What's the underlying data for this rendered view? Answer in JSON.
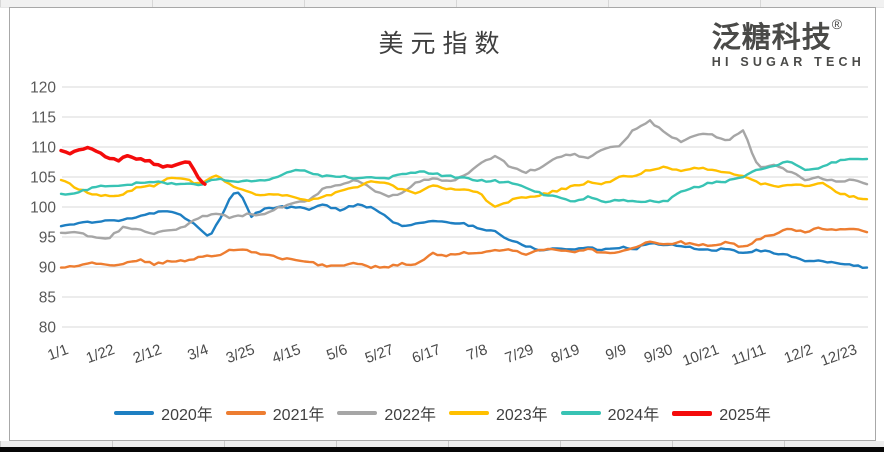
{
  "header": {
    "title": "美元指数"
  },
  "logo": {
    "name": "泛糖科技",
    "registered": "®",
    "subtitle": "HI SUGAR TECH"
  },
  "colors": {
    "grid": "#d9d9d9",
    "axis_text": "#595959",
    "xlabel_text": "#4a4a4a",
    "title_text": "#3f3f3f"
  },
  "chart_data": {
    "type": "line",
    "title": "美元指数",
    "xlabel": "",
    "ylabel": "",
    "ylim": [
      80,
      120
    ],
    "yticks": [
      120,
      115,
      110,
      105,
      100,
      95,
      90,
      85,
      80
    ],
    "x_domain_days": [
      1,
      365
    ],
    "x_tick_days": [
      1,
      22,
      43,
      64,
      85,
      106,
      127,
      148,
      169,
      190,
      211,
      232,
      253,
      274,
      295,
      316,
      337,
      357
    ],
    "x_tick_labels": [
      "1/1",
      "1/22",
      "2/12",
      "3/4",
      "3/25",
      "4/15",
      "5/6",
      "5/27",
      "6/17",
      "7/8",
      "7/29",
      "8/19",
      "9/9",
      "9/30",
      "10/21",
      "11/11",
      "12/2",
      "12/23"
    ],
    "grid": "horizontal",
    "legend_position": "bottom",
    "series": [
      {
        "name": "2020年",
        "color": "#1e7fc2",
        "width": 2.4,
        "points": [
          [
            1,
            96.8
          ],
          [
            8,
            97.3
          ],
          [
            15,
            97.4
          ],
          [
            22,
            97.8
          ],
          [
            29,
            97.9
          ],
          [
            36,
            98.3
          ],
          [
            43,
            99.0
          ],
          [
            50,
            99.5
          ],
          [
            57,
            98.2
          ],
          [
            61,
            97.4
          ],
          [
            64,
            96.4
          ],
          [
            68,
            95.0
          ],
          [
            75,
            99.6
          ],
          [
            78,
            102.0
          ],
          [
            80,
            102.8
          ],
          [
            83,
            101.6
          ],
          [
            87,
            98.4
          ],
          [
            92,
            99.6
          ],
          [
            99,
            100.0
          ],
          [
            106,
            99.9
          ],
          [
            113,
            99.7
          ],
          [
            120,
            100.3
          ],
          [
            127,
            99.5
          ],
          [
            134,
            100.4
          ],
          [
            141,
            99.9
          ],
          [
            148,
            98.3
          ],
          [
            155,
            96.7
          ],
          [
            162,
            97.3
          ],
          [
            169,
            97.6
          ],
          [
            176,
            97.4
          ],
          [
            183,
            97.2
          ],
          [
            190,
            96.5
          ],
          [
            197,
            95.9
          ],
          [
            204,
            94.4
          ],
          [
            211,
            93.5
          ],
          [
            218,
            92.8
          ],
          [
            225,
            93.1
          ],
          [
            232,
            92.9
          ],
          [
            239,
            93.3
          ],
          [
            246,
            92.8
          ],
          [
            253,
            93.3
          ],
          [
            260,
            93.0
          ],
          [
            267,
            94.0
          ],
          [
            274,
            93.7
          ],
          [
            281,
            93.6
          ],
          [
            288,
            93.0
          ],
          [
            295,
            92.8
          ],
          [
            302,
            93.1
          ],
          [
            309,
            92.2
          ],
          [
            316,
            92.8
          ],
          [
            323,
            92.3
          ],
          [
            330,
            91.9
          ],
          [
            337,
            90.8
          ],
          [
            344,
            91.0
          ],
          [
            351,
            90.7
          ],
          [
            358,
            90.3
          ],
          [
            365,
            89.9
          ]
        ]
      },
      {
        "name": "2021年",
        "color": "#ed7d31",
        "width": 2.4,
        "points": [
          [
            1,
            89.9
          ],
          [
            8,
            90.1
          ],
          [
            15,
            90.8
          ],
          [
            22,
            90.2
          ],
          [
            29,
            90.6
          ],
          [
            36,
            91.2
          ],
          [
            43,
            90.5
          ],
          [
            50,
            90.9
          ],
          [
            57,
            91.0
          ],
          [
            64,
            91.6
          ],
          [
            71,
            91.9
          ],
          [
            78,
            92.9
          ],
          [
            85,
            92.8
          ],
          [
            92,
            92.1
          ],
          [
            99,
            91.6
          ],
          [
            106,
            91.1
          ],
          [
            113,
            90.8
          ],
          [
            120,
            90.2
          ],
          [
            127,
            90.2
          ],
          [
            134,
            90.8
          ],
          [
            141,
            90.0
          ],
          [
            148,
            90.0
          ],
          [
            155,
            90.5
          ],
          [
            162,
            90.5
          ],
          [
            169,
            92.2
          ],
          [
            176,
            91.9
          ],
          [
            183,
            92.4
          ],
          [
            190,
            92.2
          ],
          [
            197,
            92.7
          ],
          [
            204,
            92.9
          ],
          [
            211,
            92.2
          ],
          [
            218,
            93.0
          ],
          [
            225,
            92.8
          ],
          [
            232,
            92.5
          ],
          [
            239,
            93.0
          ],
          [
            246,
            92.3
          ],
          [
            253,
            92.6
          ],
          [
            260,
            93.2
          ],
          [
            267,
            94.3
          ],
          [
            274,
            93.8
          ],
          [
            281,
            94.1
          ],
          [
            288,
            93.7
          ],
          [
            295,
            93.6
          ],
          [
            302,
            94.1
          ],
          [
            309,
            93.3
          ],
          [
            316,
            94.6
          ],
          [
            323,
            95.5
          ],
          [
            330,
            96.3
          ],
          [
            337,
            95.9
          ],
          [
            344,
            96.5
          ],
          [
            351,
            96.1
          ],
          [
            358,
            96.5
          ],
          [
            365,
            95.8
          ]
        ]
      },
      {
        "name": "2022年",
        "color": "#a6a6a6",
        "width": 2.4,
        "points": [
          [
            1,
            95.7
          ],
          [
            8,
            95.8
          ],
          [
            15,
            95.0
          ],
          [
            22,
            94.7
          ],
          [
            29,
            96.6
          ],
          [
            36,
            96.2
          ],
          [
            43,
            95.5
          ],
          [
            50,
            96.1
          ],
          [
            57,
            96.7
          ],
          [
            64,
            98.4
          ],
          [
            71,
            98.8
          ],
          [
            78,
            98.2
          ],
          [
            85,
            98.8
          ],
          [
            92,
            98.6
          ],
          [
            99,
            99.8
          ],
          [
            106,
            100.5
          ],
          [
            113,
            101.2
          ],
          [
            120,
            103.2
          ],
          [
            127,
            103.7
          ],
          [
            134,
            104.7
          ],
          [
            141,
            103.1
          ],
          [
            148,
            101.8
          ],
          [
            155,
            102.2
          ],
          [
            162,
            104.2
          ],
          [
            169,
            104.7
          ],
          [
            176,
            104.2
          ],
          [
            183,
            105.1
          ],
          [
            190,
            107.1
          ],
          [
            197,
            108.5
          ],
          [
            204,
            106.7
          ],
          [
            211,
            105.8
          ],
          [
            218,
            106.6
          ],
          [
            225,
            108.2
          ],
          [
            232,
            108.8
          ],
          [
            239,
            108.1
          ],
          [
            246,
            109.8
          ],
          [
            253,
            110.2
          ],
          [
            260,
            113.0
          ],
          [
            267,
            114.3
          ],
          [
            274,
            112.2
          ],
          [
            281,
            110.9
          ],
          [
            288,
            112.1
          ],
          [
            295,
            112.0
          ],
          [
            302,
            110.8
          ],
          [
            309,
            112.9
          ],
          [
            316,
            106.4
          ],
          [
            323,
            107.1
          ],
          [
            330,
            105.9
          ],
          [
            337,
            104.5
          ],
          [
            344,
            104.9
          ],
          [
            351,
            104.2
          ],
          [
            358,
            104.6
          ],
          [
            365,
            103.8
          ]
        ]
      },
      {
        "name": "2023年",
        "color": "#ffc000",
        "width": 2.4,
        "points": [
          [
            1,
            104.5
          ],
          [
            8,
            103.2
          ],
          [
            15,
            102.2
          ],
          [
            22,
            101.9
          ],
          [
            29,
            102.1
          ],
          [
            36,
            103.4
          ],
          [
            43,
            103.6
          ],
          [
            50,
            104.9
          ],
          [
            57,
            104.6
          ],
          [
            64,
            103.7
          ],
          [
            71,
            105.3
          ],
          [
            78,
            103.5
          ],
          [
            85,
            102.6
          ],
          [
            92,
            101.9
          ],
          [
            99,
            102.1
          ],
          [
            106,
            101.6
          ],
          [
            113,
            101.2
          ],
          [
            120,
            101.8
          ],
          [
            127,
            102.6
          ],
          [
            134,
            103.2
          ],
          [
            141,
            104.2
          ],
          [
            148,
            103.9
          ],
          [
            155,
            102.9
          ],
          [
            162,
            102.3
          ],
          [
            169,
            103.7
          ],
          [
            176,
            102.9
          ],
          [
            183,
            103.1
          ],
          [
            190,
            102.3
          ],
          [
            197,
            99.9
          ],
          [
            204,
            101.1
          ],
          [
            211,
            101.7
          ],
          [
            218,
            102.0
          ],
          [
            225,
            102.7
          ],
          [
            232,
            103.4
          ],
          [
            239,
            104.1
          ],
          [
            246,
            103.9
          ],
          [
            253,
            104.9
          ],
          [
            260,
            105.3
          ],
          [
            267,
            106.2
          ],
          [
            274,
            106.7
          ],
          [
            281,
            106.1
          ],
          [
            288,
            106.6
          ],
          [
            295,
            106.2
          ],
          [
            302,
            105.9
          ],
          [
            309,
            105.1
          ],
          [
            316,
            104.0
          ],
          [
            323,
            103.4
          ],
          [
            330,
            103.9
          ],
          [
            337,
            103.4
          ],
          [
            344,
            104.1
          ],
          [
            351,
            102.5
          ],
          [
            358,
            101.7
          ],
          [
            365,
            101.3
          ]
        ]
      },
      {
        "name": "2024年",
        "color": "#38c3b4",
        "width": 2.4,
        "points": [
          [
            1,
            102.2
          ],
          [
            8,
            102.3
          ],
          [
            15,
            103.3
          ],
          [
            22,
            103.5
          ],
          [
            29,
            103.6
          ],
          [
            36,
            104.1
          ],
          [
            43,
            104.2
          ],
          [
            50,
            103.9
          ],
          [
            57,
            103.8
          ],
          [
            64,
            103.6
          ],
          [
            71,
            104.7
          ],
          [
            78,
            104.4
          ],
          [
            85,
            104.3
          ],
          [
            92,
            104.5
          ],
          [
            99,
            105.0
          ],
          [
            106,
            106.2
          ],
          [
            113,
            105.8
          ],
          [
            120,
            105.1
          ],
          [
            127,
            105.2
          ],
          [
            134,
            104.6
          ],
          [
            141,
            105.0
          ],
          [
            148,
            104.7
          ],
          [
            155,
            105.5
          ],
          [
            162,
            105.9
          ],
          [
            169,
            105.6
          ],
          [
            176,
            105.1
          ],
          [
            183,
            104.9
          ],
          [
            190,
            104.4
          ],
          [
            197,
            104.3
          ],
          [
            204,
            104.1
          ],
          [
            211,
            103.2
          ],
          [
            218,
            102.2
          ],
          [
            225,
            101.8
          ],
          [
            232,
            100.7
          ],
          [
            239,
            101.7
          ],
          [
            246,
            100.9
          ],
          [
            253,
            101.2
          ],
          [
            260,
            100.8
          ],
          [
            267,
            101.0
          ],
          [
            274,
            100.9
          ],
          [
            281,
            102.5
          ],
          [
            288,
            103.3
          ],
          [
            295,
            104.1
          ],
          [
            302,
            104.3
          ],
          [
            309,
            105.0
          ],
          [
            316,
            106.2
          ],
          [
            323,
            107.0
          ],
          [
            330,
            107.5
          ],
          [
            337,
            106.3
          ],
          [
            344,
            106.6
          ],
          [
            351,
            107.6
          ],
          [
            358,
            108.1
          ],
          [
            365,
            108.0
          ]
        ]
      },
      {
        "name": "2025年",
        "color": "#f40b0b",
        "width": 3.5,
        "points": [
          [
            1,
            109.4
          ],
          [
            4,
            108.9
          ],
          [
            8,
            109.2
          ],
          [
            13,
            109.9
          ],
          [
            17,
            109.3
          ],
          [
            22,
            108.1
          ],
          [
            27,
            107.8
          ],
          [
            31,
            108.4
          ],
          [
            36,
            108.0
          ],
          [
            41,
            107.6
          ],
          [
            45,
            106.9
          ],
          [
            50,
            106.7
          ],
          [
            55,
            107.3
          ],
          [
            59,
            107.6
          ],
          [
            62,
            105.7
          ],
          [
            64,
            104.3
          ],
          [
            66,
            103.8
          ]
        ]
      }
    ]
  }
}
